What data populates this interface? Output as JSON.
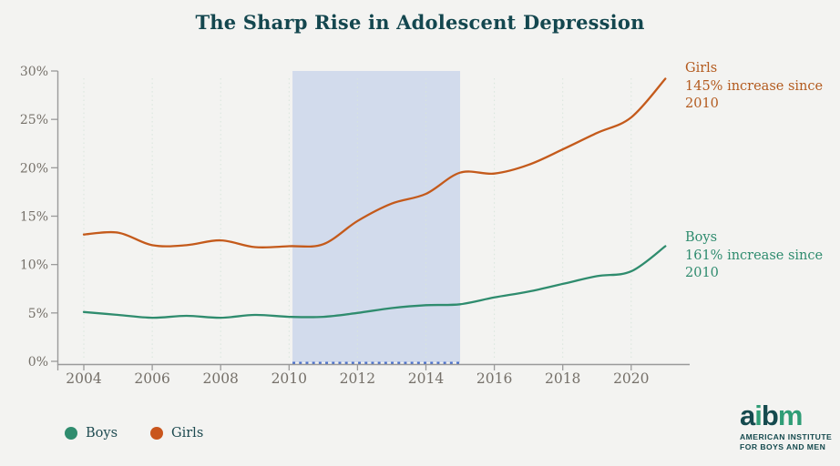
{
  "title": {
    "text": "The Sharp Rise in Adolescent Depression",
    "color": "#14474f"
  },
  "chart_data": {
    "type": "line",
    "title": "The Sharp Rise in Adolescent Depression",
    "xlabel": "",
    "ylabel": "",
    "x": [
      2004,
      2005,
      2006,
      2007,
      2008,
      2009,
      2010,
      2011,
      2012,
      2013,
      2014,
      2015,
      2016,
      2017,
      2018,
      2019,
      2020,
      2021
    ],
    "series": [
      {
        "name": "Girls",
        "color": "#c45a1b",
        "values": [
          13.1,
          13.3,
          12.0,
          12.0,
          12.5,
          11.8,
          11.9,
          12.1,
          14.5,
          16.3,
          17.3,
          19.5,
          19.4,
          20.3,
          21.9,
          23.6,
          25.2,
          29.2
        ]
      },
      {
        "name": "Boys",
        "color": "#2f8c6e",
        "values": [
          5.1,
          4.8,
          4.5,
          4.7,
          4.5,
          4.8,
          4.6,
          4.6,
          5.0,
          5.5,
          5.8,
          5.9,
          6.6,
          7.2,
          8.0,
          8.8,
          9.3,
          11.9
        ]
      }
    ],
    "ylim": [
      0,
      30
    ],
    "xlim": [
      2003.2,
      2021.7
    ],
    "y_ticks": [
      {
        "value": 0,
        "label": "0%"
      },
      {
        "value": 5,
        "label": "5%"
      },
      {
        "value": 10,
        "label": "10%"
      },
      {
        "value": 15,
        "label": "15%"
      },
      {
        "value": 20,
        "label": "20%"
      },
      {
        "value": 25,
        "label": "25%"
      },
      {
        "value": 30,
        "label": "30%"
      }
    ],
    "x_ticks": [
      {
        "value": 2004,
        "label": "2004"
      },
      {
        "value": 2006,
        "label": "2006"
      },
      {
        "value": 2008,
        "label": "2008"
      },
      {
        "value": 2010,
        "label": "2010"
      },
      {
        "value": 2012,
        "label": "2012"
      },
      {
        "value": 2014,
        "label": "2014"
      },
      {
        "value": 2016,
        "label": "2016"
      },
      {
        "value": 2018,
        "label": "2018"
      },
      {
        "value": 2020,
        "label": "2020"
      }
    ],
    "grid": "vertical-dotted",
    "gridline_color": "#d8e5dc",
    "highlight_band": {
      "from": 2010.1,
      "to": 2015.0,
      "fill": "#d2dbec",
      "underline_color": "#4e73cc"
    },
    "annotations": [
      {
        "series": "Girls",
        "line1": "Girls",
        "line2": "145% increase since 2010",
        "color": "#b35a1e"
      },
      {
        "series": "Boys",
        "line1": "Boys",
        "line2": "161% increase since 2010",
        "color": "#2e8b6e"
      }
    ],
    "legend": {
      "position": "bottom-left",
      "items": [
        {
          "label": "Boys",
          "color": "#2f8c6e"
        },
        {
          "label": "Girls",
          "color": "#c9551c"
        }
      ]
    },
    "axis_color": "#9a9a9a",
    "tick_label_color": "#757069"
  },
  "logo": {
    "letters": [
      {
        "char": "a",
        "color": "#154a4e"
      },
      {
        "char": "i",
        "color": "#2f9d76"
      },
      {
        "char": "b",
        "color": "#154a4e"
      },
      {
        "char": "m",
        "color": "#2f9d76"
      }
    ],
    "line1": "AMERICAN INSTITUTE",
    "line2": "FOR BOYS AND MEN"
  }
}
